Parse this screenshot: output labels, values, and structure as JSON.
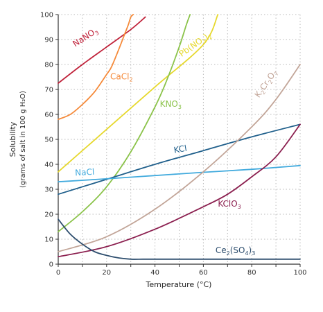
{
  "chart_data": {
    "type": "line",
    "xlabel": "Temperature (°C)",
    "ylabel": "Solubility",
    "ylabel_sub": "(grams of salt in 100 g H₂O)",
    "xlim": [
      0,
      100
    ],
    "ylim": [
      0,
      100
    ],
    "xticks": [
      0,
      20,
      40,
      60,
      80,
      100
    ],
    "yticks": [
      0,
      10,
      20,
      30,
      40,
      50,
      60,
      70,
      80,
      90,
      100
    ],
    "grid": "dotted",
    "legend": "inline",
    "series": [
      {
        "name": "NaNO3",
        "label_parts": [
          "NaNO",
          "3"
        ],
        "label_at": [
          7,
          87
        ],
        "label_angle": -33,
        "color": "#c0223a",
        "x": [
          0,
          10,
          20,
          30,
          36
        ],
        "y": [
          72.5,
          80,
          87,
          94,
          99
        ]
      },
      {
        "name": "CaCl2",
        "label_parts": [
          "CaCl",
          "2"
        ],
        "label_at": [
          21.5,
          74
        ],
        "label_angle": 0,
        "color": "#f58a3a",
        "x": [
          0,
          5,
          10,
          15,
          20,
          22,
          25,
          27,
          29,
          30,
          31
        ],
        "y": [
          58,
          60,
          64,
          69,
          76,
          79,
          86,
          91,
          96,
          99,
          100
        ]
      },
      {
        "name": "Pb(NO3)2",
        "label_parts": [
          "Pb(NO",
          "3",
          ")",
          "2"
        ],
        "label_at": [
          51,
          83
        ],
        "label_angle": -35,
        "color": "#e6d82c",
        "x": [
          0,
          20,
          40,
          60,
          66
        ],
        "y": [
          37,
          54,
          71,
          88,
          100
        ]
      },
      {
        "name": "KNO3",
        "label_parts": [
          "KNO",
          "3"
        ],
        "label_at": [
          42,
          63
        ],
        "label_angle": 0,
        "color": "#8bc34a",
        "x": [
          0,
          10,
          20,
          30,
          40,
          45,
          50,
          53,
          54.5
        ],
        "y": [
          13,
          21,
          31,
          45,
          63,
          74,
          87,
          96,
          100
        ]
      },
      {
        "name": "KCl",
        "label_parts": [
          "KCl"
        ],
        "label_at": [
          48,
          44.5
        ],
        "label_angle": -10,
        "color": "#1f5f8b",
        "x": [
          0,
          20,
          40,
          60,
          80,
          100
        ],
        "y": [
          28,
          34,
          40,
          45.5,
          51,
          56
        ]
      },
      {
        "name": "NaCl",
        "label_parts": [
          "NaCl"
        ],
        "label_at": [
          7,
          35.5
        ],
        "label_angle": -3,
        "color": "#41aadd",
        "x": [
          0,
          20,
          40,
          60,
          80,
          100
        ],
        "y": [
          33,
          34.2,
          35.5,
          36.8,
          38,
          39.5
        ]
      },
      {
        "name": "K2Cr2O7",
        "label_parts": [
          "K",
          "2",
          "Cr",
          "2",
          "O",
          "7"
        ],
        "label_at": [
          83,
          66.5
        ],
        "label_angle": -55,
        "color": "#c2a598",
        "x": [
          0,
          20,
          40,
          60,
          80,
          90,
          100
        ],
        "y": [
          5,
          11,
          22,
          37,
          55,
          66,
          80
        ]
      },
      {
        "name": "KClO3",
        "label_parts": [
          "KClO",
          "3"
        ],
        "label_at": [
          66,
          23
        ],
        "label_angle": 0,
        "color": "#8b1f4f",
        "x": [
          0,
          20,
          40,
          60,
          70,
          80,
          90,
          100
        ],
        "y": [
          3,
          7,
          14,
          23,
          28,
          35,
          43,
          56
        ]
      },
      {
        "name": "Ce2(SO4)3",
        "label_parts": [
          "Ce",
          "2",
          "(SO",
          "4",
          ")",
          "3"
        ],
        "label_at": [
          65,
          4.5
        ],
        "label_angle": 0,
        "color": "#2f4f6f",
        "x": [
          0,
          5,
          10,
          15,
          20,
          25,
          30,
          35,
          40,
          60,
          80,
          100
        ],
        "y": [
          18,
          12,
          8,
          5,
          3.5,
          2.5,
          2,
          2,
          2,
          2,
          2,
          2
        ]
      }
    ]
  }
}
